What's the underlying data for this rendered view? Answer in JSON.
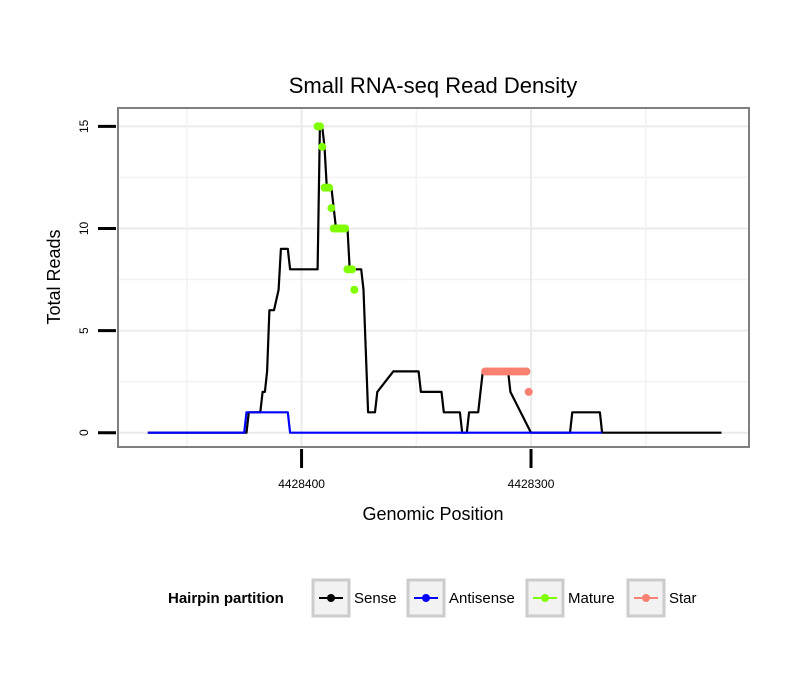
{
  "chart_data": {
    "type": "line",
    "title": "Small RNA-seq Read Density",
    "xlabel": "Genomic Position",
    "ylabel": "Total Reads",
    "x_reversed": true,
    "xlim": [
      4428480,
      4428205
    ],
    "ylim": [
      -0.7,
      15.9
    ],
    "x_ticks": [
      4428400,
      4428300
    ],
    "x_tick_labels": [
      "4428400",
      "4428300"
    ],
    "y_ticks": [
      0,
      5,
      10,
      15
    ],
    "y_tick_labels": [
      "0",
      "5",
      "10",
      "15"
    ],
    "grid": true,
    "legend": {
      "title": "Hairpin partition",
      "placement": "bottom",
      "entries": [
        "Sense",
        "Antisense",
        "Mature",
        "Star"
      ]
    },
    "series": [
      {
        "name": "Sense",
        "color": "#000000",
        "style": "line",
        "x": [
          4428467,
          4428424,
          4428423,
          4428418,
          4428417,
          4428416,
          4428415,
          4428414,
          4428413,
          4428412,
          4428410,
          4428409,
          4428408,
          4428406,
          4428405,
          4428402,
          4428401,
          4428393,
          4428392,
          4428391,
          4428390,
          4428389,
          4428388,
          4428387,
          4428386,
          4428385,
          4428382,
          4428381,
          4428380,
          4428379,
          4428374,
          4428373,
          4428372,
          4428371,
          4428370,
          4428369,
          4428368,
          4428367,
          4428360,
          4428359,
          4428357,
          4428356,
          4428349,
          4428348,
          4428339,
          4428338,
          4428337,
          4428332,
          4428331,
          4428330,
          4428328,
          4428327,
          4428323,
          4428321,
          4428319,
          4428318,
          4428317,
          4428311,
          4428310,
          4428309,
          4428300,
          4428299,
          4428293,
          4428292,
          4428283,
          4428282,
          4428270,
          4428269,
          4428217
        ],
        "y": [
          0,
          0,
          1,
          1,
          2,
          2,
          3,
          6,
          6,
          6,
          7,
          9,
          9,
          9,
          8,
          8,
          8,
          8,
          15,
          15,
          14,
          12,
          12,
          12,
          11,
          10,
          10,
          10,
          10,
          8,
          8,
          7,
          4,
          1,
          1,
          1,
          1,
          2,
          3,
          3,
          3,
          3,
          3,
          2,
          2,
          1,
          1,
          1,
          1,
          0,
          0,
          1,
          1,
          3,
          3,
          3,
          3,
          3,
          3,
          2,
          0,
          0,
          0,
          0,
          0,
          1,
          1,
          0,
          0
        ]
      },
      {
        "name": "Antisense",
        "color": "#0000ff",
        "style": "line",
        "x": [
          4428467,
          4428425,
          4428424,
          4428406,
          4428405,
          4428269
        ],
        "y": [
          0,
          0,
          1,
          1,
          0,
          0
        ]
      },
      {
        "name": "Mature",
        "color": "#7fff00",
        "style": "points",
        "x": [
          4428393,
          4428392,
          4428391,
          4428390,
          4428389,
          4428388,
          4428387,
          4428386,
          4428385,
          4428384,
          4428383,
          4428382,
          4428381,
          4428380,
          4428379,
          4428378,
          4428377
        ],
        "y": [
          15,
          15,
          14,
          12,
          12,
          12,
          11,
          10,
          10,
          10,
          10,
          10,
          10,
          8,
          8,
          8,
          7
        ]
      },
      {
        "name": "Star",
        "color": "#fa8072",
        "style": "points",
        "x": [
          4428320,
          4428319,
          4428318,
          4428317,
          4428316,
          4428315,
          4428314,
          4428313,
          4428312,
          4428311,
          4428310,
          4428309,
          4428308,
          4428307,
          4428306,
          4428305,
          4428304,
          4428303,
          4428302,
          4428301
        ],
        "y": [
          3,
          3,
          3,
          3,
          3,
          3,
          3,
          3,
          3,
          3,
          3,
          3,
          3,
          3,
          3,
          3,
          3,
          3,
          3,
          2
        ]
      }
    ]
  }
}
